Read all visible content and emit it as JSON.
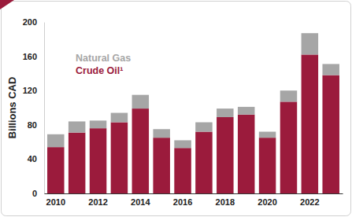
{
  "chart_data": {
    "type": "bar",
    "stacked": true,
    "y_label": "Billions CAD",
    "categories": [
      "2010",
      null,
      "2012",
      null,
      "2014",
      null,
      "2016",
      null,
      "2018",
      null,
      "2020",
      null,
      "2022",
      null
    ],
    "series": [
      {
        "name": "Crude Oil¹",
        "color": "#9b1b3c",
        "values": [
          54,
          71,
          76,
          83,
          99,
          65,
          53,
          72,
          89,
          92,
          65,
          107,
          162,
          138
        ]
      },
      {
        "name": "Natural Gas",
        "color": "#a6a6a6",
        "values": [
          15,
          13,
          9,
          11,
          16,
          10,
          9,
          11,
          10,
          9,
          7,
          13,
          25,
          13
        ]
      }
    ],
    "ylim": [
      0,
      200
    ],
    "yticks": [
      0,
      40,
      80,
      120,
      160,
      200
    ],
    "grid": false,
    "legend": "upper left"
  }
}
